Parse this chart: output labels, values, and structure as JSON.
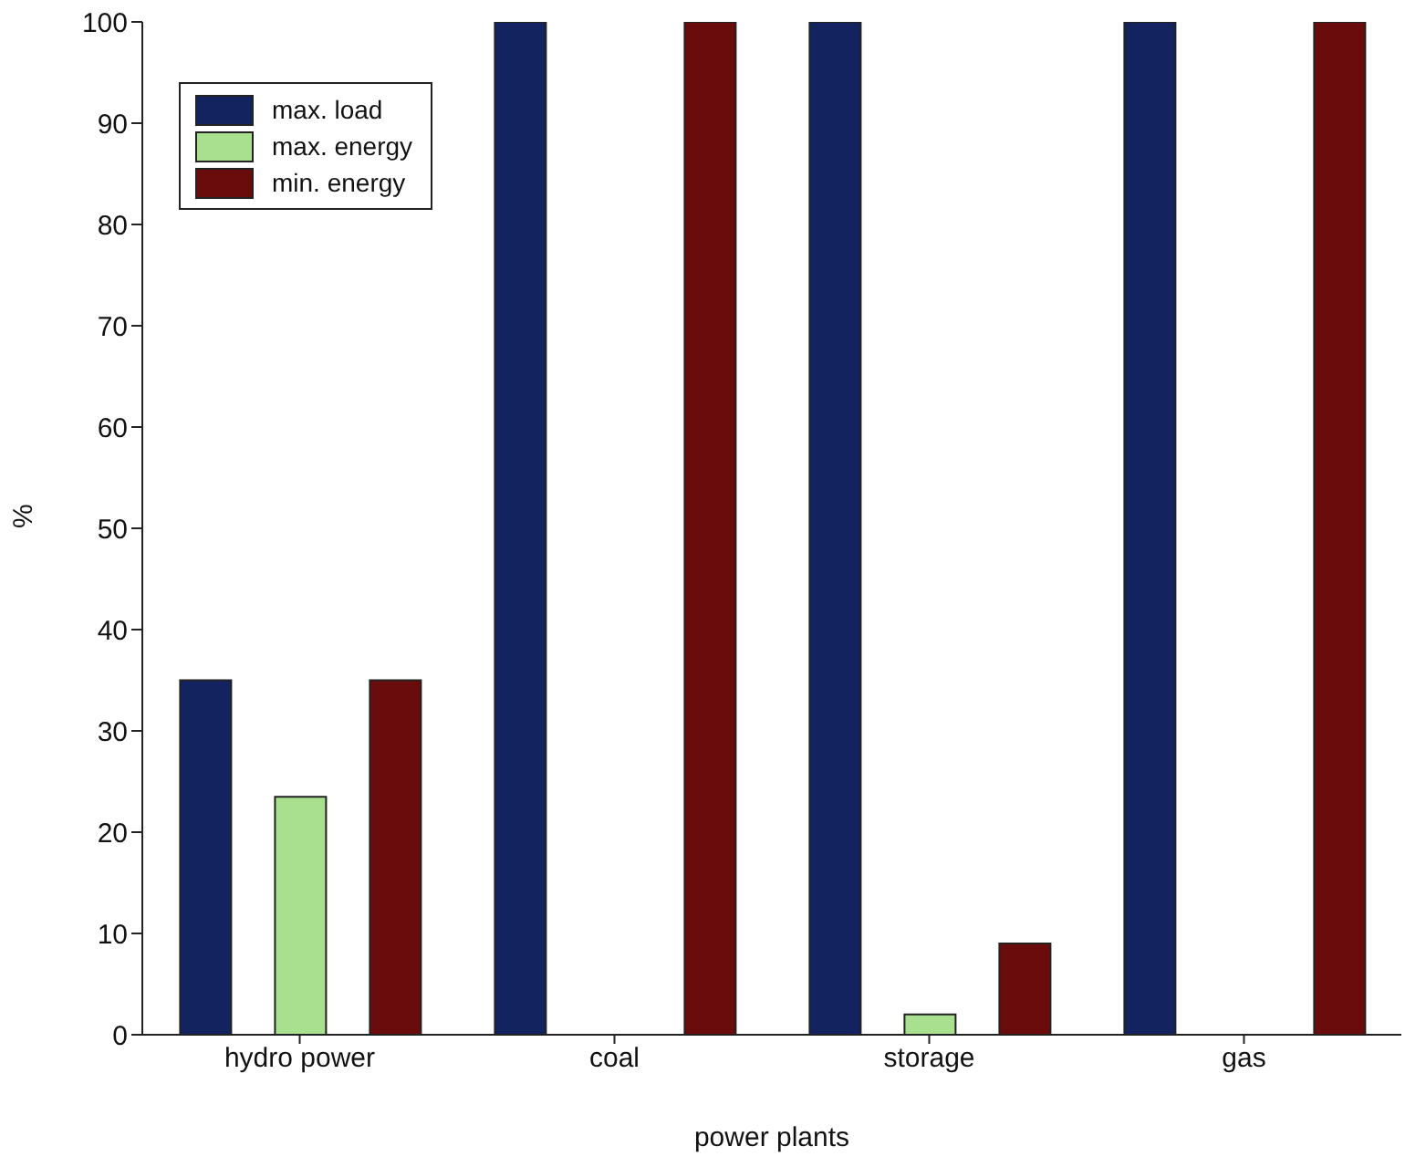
{
  "chart_data": {
    "type": "bar",
    "xlabel": "power plants",
    "ylabel": "%",
    "categories": [
      "hydro power",
      "coal",
      "storage",
      "gas"
    ],
    "series": [
      {
        "name": "max. load",
        "color": "#13235f",
        "values": [
          35,
          100,
          100,
          100
        ]
      },
      {
        "name": "max. energy",
        "color": "#a8e08f",
        "values": [
          23.5,
          0,
          2,
          0
        ]
      },
      {
        "name": "min. energy",
        "color": "#6a0c0c",
        "values": [
          35,
          100,
          9,
          100
        ]
      }
    ],
    "ylim": [
      0,
      100
    ],
    "yticks": [
      0,
      10,
      20,
      30,
      40,
      50,
      60,
      70,
      80,
      90,
      100
    ],
    "grid": false,
    "legend": "top left"
  }
}
